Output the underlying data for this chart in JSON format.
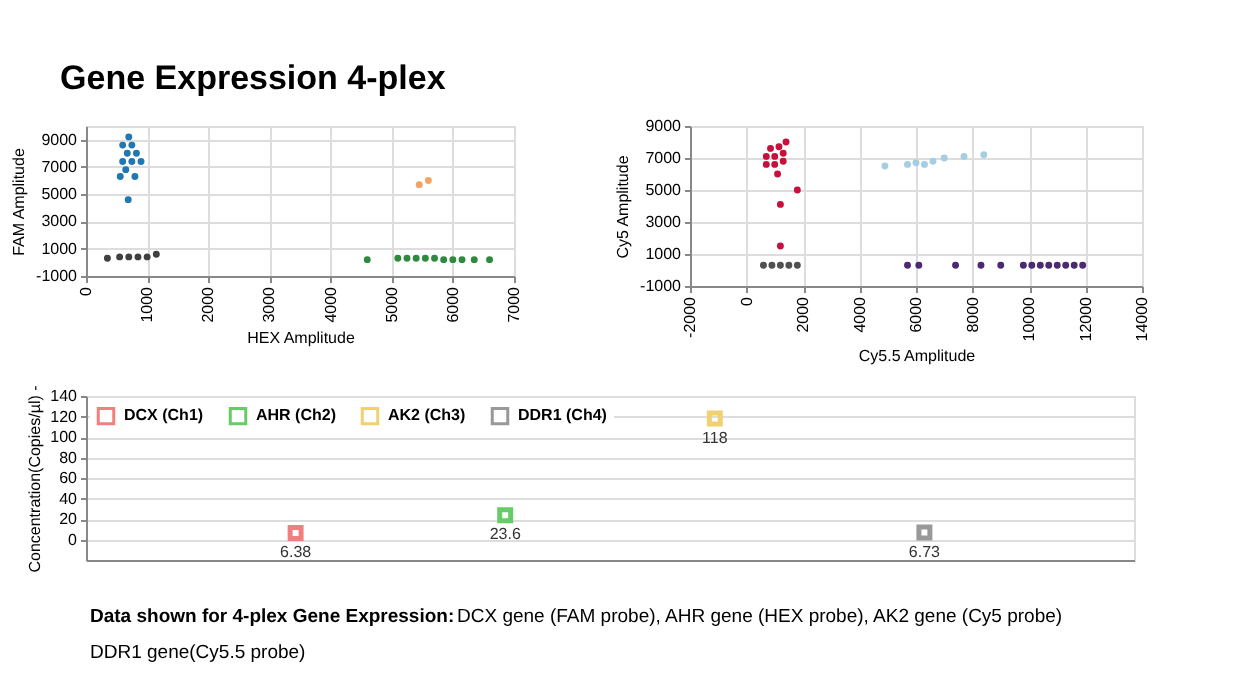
{
  "chart_data": [
    {
      "type": "scatter",
      "title": "Gene Expression 4-plex",
      "xlabel": "HEX Amplitude",
      "ylabel": "FAM Amplitude",
      "xlim": [
        0,
        7000
      ],
      "xticks": [
        0,
        1000,
        2000,
        3000,
        4000,
        5000,
        6000,
        7000
      ],
      "ylim": [
        -1000,
        10000
      ],
      "yticks": [
        -1000,
        1000,
        3000,
        5000,
        7000,
        9000
      ],
      "grid": true,
      "marker": "circle",
      "legend": false,
      "series": [
        {
          "color": "#1f77b4",
          "x": [
            600,
            750,
            900,
            675,
            825,
            600,
            750,
            700,
            650,
            560,
            800,
            690
          ],
          "values": [
            7400,
            7400,
            7400,
            8000,
            8000,
            8600,
            8600,
            9200,
            6800,
            6300,
            6300,
            4600
          ]
        },
        {
          "color": "#f4a460",
          "x": [
            5450,
            5600
          ],
          "values": [
            5700,
            6000
          ]
        },
        {
          "color": "#404040",
          "x": [
            350,
            550,
            700,
            850,
            1000,
            1150
          ],
          "values": [
            300,
            400,
            400,
            400,
            400,
            600
          ]
        },
        {
          "color": "#2e8b3e",
          "x": [
            4600,
            5100,
            5250,
            5400,
            5550,
            5700,
            5850,
            6000,
            6150,
            6350,
            6600
          ],
          "values": [
            200,
            300,
            300,
            300,
            300,
            300,
            200,
            200,
            200,
            200,
            200
          ]
        }
      ]
    },
    {
      "type": "scatter",
      "xlabel": "Cy5.5 Amplitude",
      "ylabel": "Cy5 Amplitude",
      "xlim": [
        -2000,
        14000
      ],
      "xticks": [
        -2000,
        0,
        2000,
        4000,
        6000,
        8000,
        10000,
        12000,
        14000
      ],
      "ylim": [
        -1000,
        9000
      ],
      "yticks": [
        -1000,
        1000,
        3000,
        5000,
        7000,
        9000
      ],
      "grid": true,
      "marker": "circle",
      "legend": false,
      "series": [
        {
          "color": "#c8103c",
          "x": [
            700,
            1000,
            1300,
            700,
            1000,
            1300,
            850,
            1150,
            1400,
            1100,
            1200,
            1800,
            1200
          ],
          "values": [
            6600,
            6600,
            6800,
            7100,
            7100,
            7300,
            7600,
            7700,
            8000,
            6000,
            4100,
            5000,
            1500
          ]
        },
        {
          "color": "#a6cee3",
          "x": [
            4900,
            5700,
            6000,
            6300,
            6600,
            7000,
            7700,
            8400
          ],
          "values": [
            6500,
            6600,
            6700,
            6600,
            6800,
            7000,
            7100,
            7200
          ]
        },
        {
          "color": "#505050",
          "x": [
            600,
            900,
            1200,
            1500,
            1800
          ],
          "values": [
            300,
            300,
            300,
            300,
            300
          ]
        },
        {
          "color": "#4b2a72",
          "x": [
            5700,
            6100,
            7400,
            8300,
            9000,
            9800,
            10100,
            10400,
            10700,
            11000,
            11300,
            11600,
            11900
          ],
          "values": [
            300,
            300,
            300,
            300,
            300,
            300,
            300,
            300,
            300,
            300,
            300,
            300,
            300
          ]
        }
      ]
    },
    {
      "type": "scatter",
      "ylabel": "Concentration(Copies/µl) -",
      "categories": [
        null,
        null,
        null,
        null
      ],
      "ylim": [
        -20,
        140
      ],
      "yticks": [
        0,
        20,
        40,
        60,
        80,
        100,
        120,
        140
      ],
      "grid": "y",
      "marker": "square",
      "legend": "top left",
      "data_labels": true,
      "annotations": [
        "Data shown for 4-plex Gene Expression:",
        "DCX gene (FAM probe), AHR gene (HEX probe), AK2 gene (Cy5 probe) DDR1 gene(Cy5.5 probe)"
      ],
      "series": [
        {
          "name": "DCX (Ch1)",
          "color": "#f08080",
          "values": [
            6.38,
            null,
            null,
            null
          ]
        },
        {
          "name": "AHR (Ch2)",
          "color": "#66cc66",
          "values": [
            null,
            23.6,
            null,
            null
          ]
        },
        {
          "name": "AK2 (Ch3)",
          "color": "#f0d070",
          "values": [
            null,
            null,
            118,
            null
          ]
        },
        {
          "name": "DDR1 (Ch4)",
          "color": "#999999",
          "values": [
            null,
            null,
            null,
            6.73
          ]
        }
      ]
    }
  ]
}
